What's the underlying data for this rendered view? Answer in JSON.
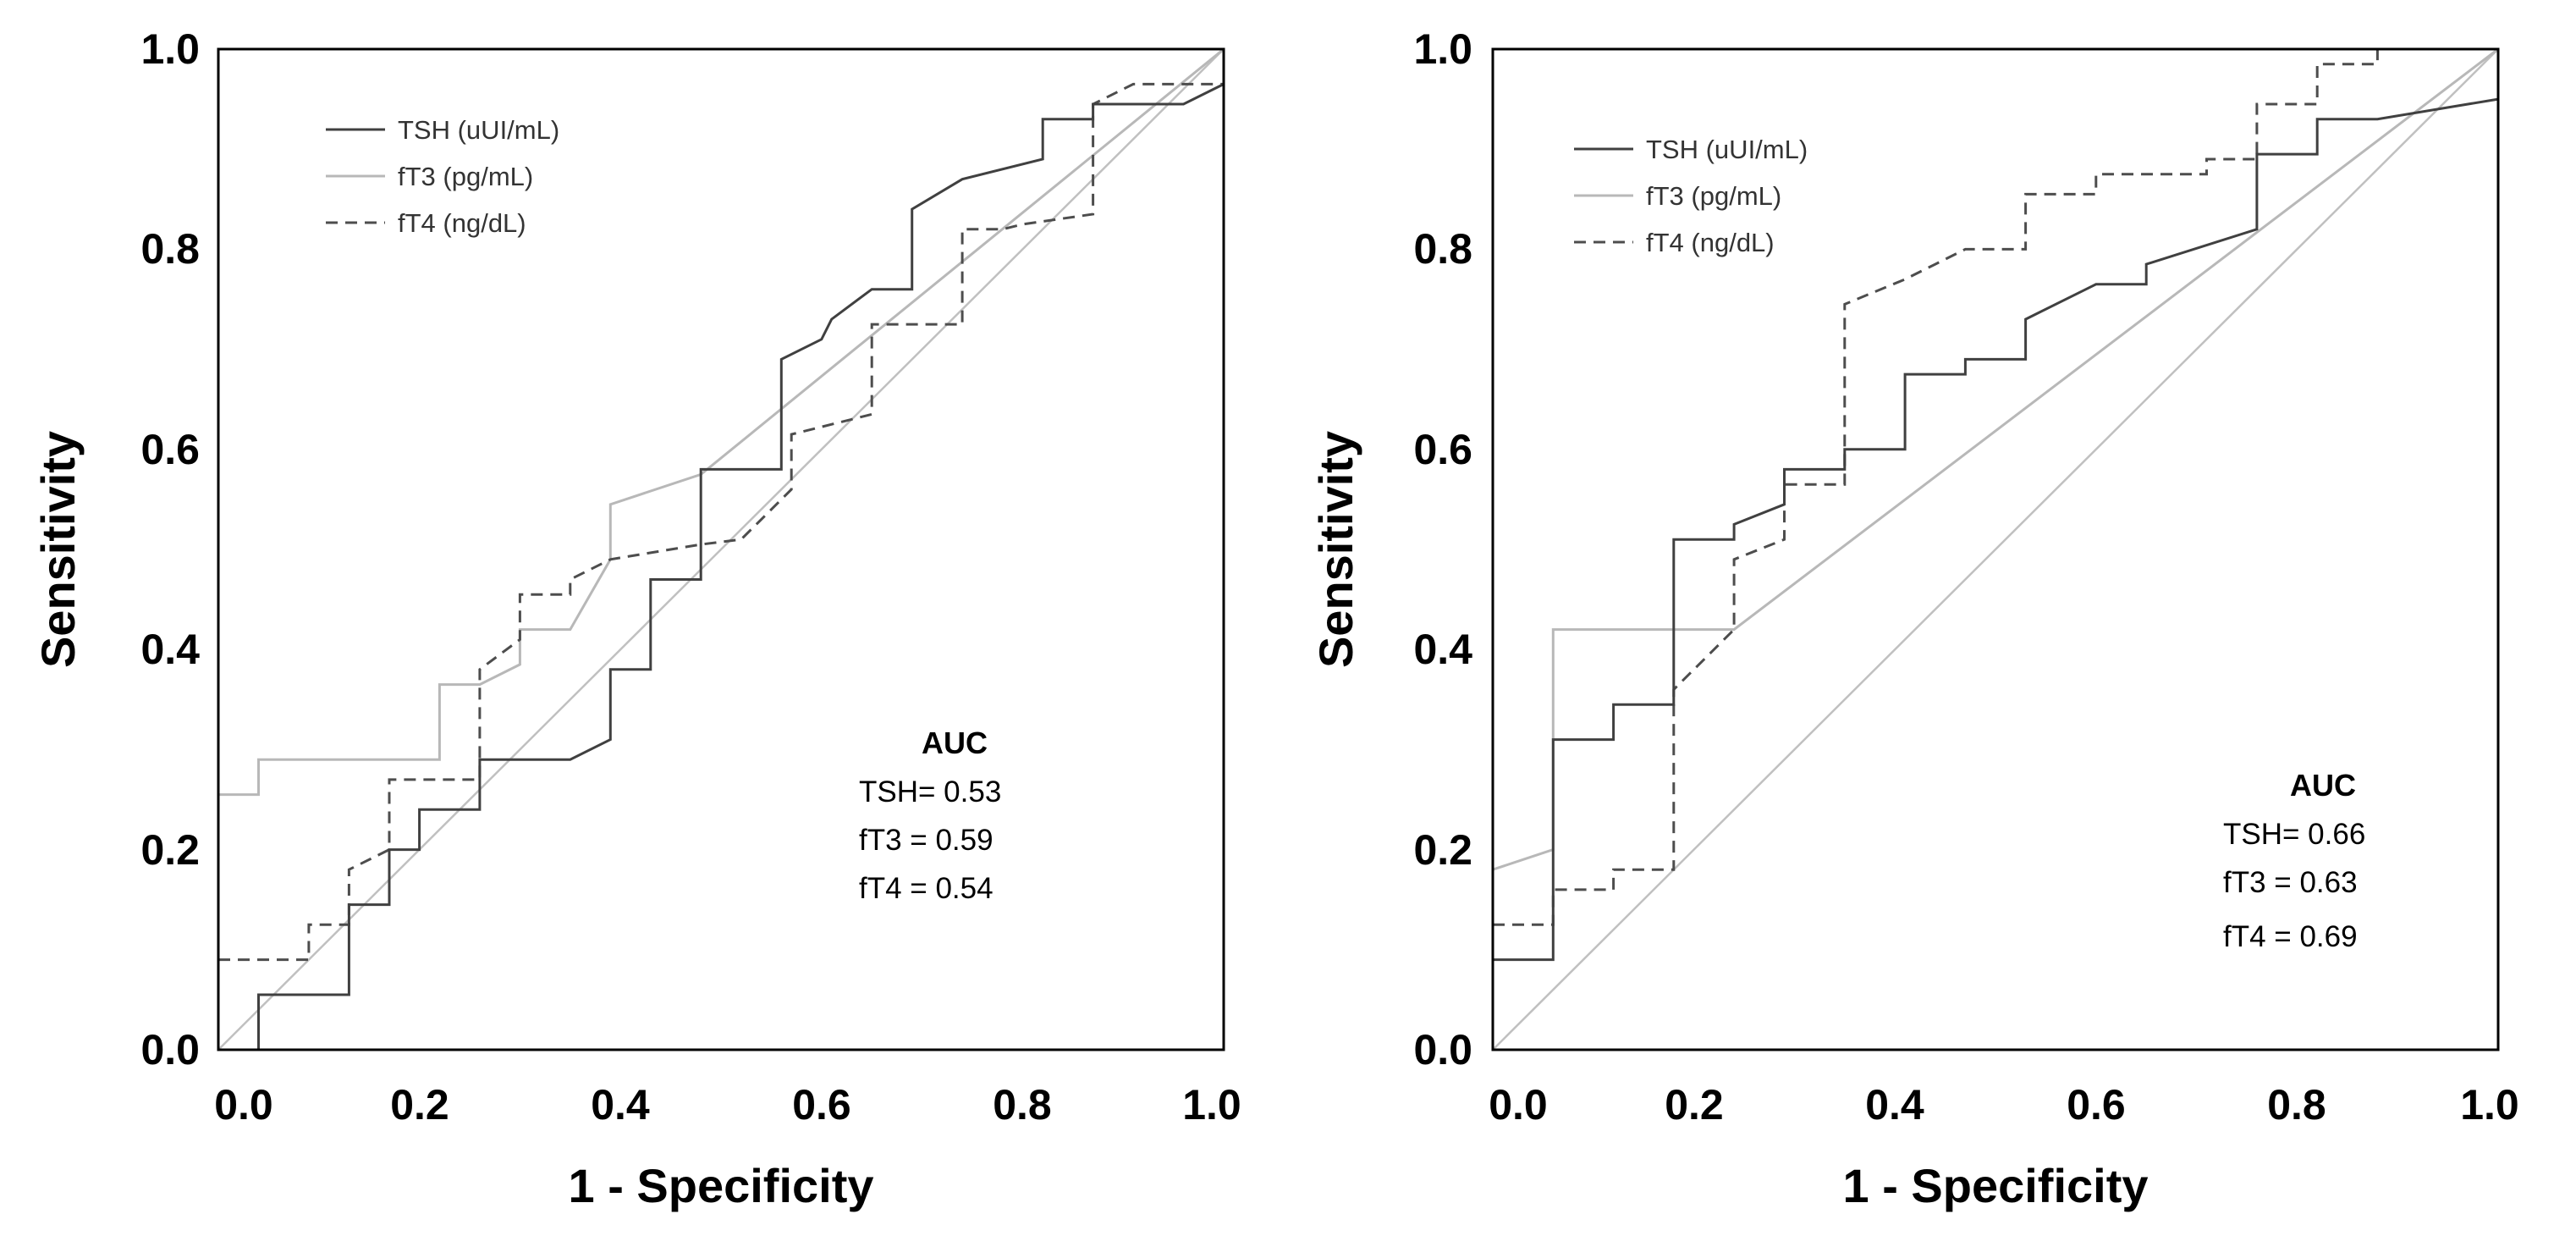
{
  "chart_data": [
    {
      "type": "line",
      "title": "",
      "xlabel": "1 - Specificity",
      "ylabel": "Sensitivity",
      "xlim": [
        0,
        1
      ],
      "ylim": [
        0,
        1
      ],
      "xticks": [
        "0.0",
        "0.2",
        "0.4",
        "0.6",
        "0.8",
        "1.0"
      ],
      "yticks": [
        "0.0",
        "0.2",
        "0.4",
        "0.6",
        "0.8",
        "1.0"
      ],
      "legend": [
        "TSH (uUI/mL)",
        "fT3 (pg/mL)",
        "fT4 (ng/dL)"
      ],
      "auc": {
        "heading": "AUC",
        "lines": [
          "TSH= 0.53",
          "fT3 = 0.59",
          "fT4 = 0.54"
        ]
      },
      "series": [
        {
          "name": "TSH (uUI/mL)",
          "style": "solid",
          "color": "#404040",
          "points": [
            [
              0.04,
              0
            ],
            [
              0.04,
              0.055
            ],
            [
              0.13,
              0.055
            ],
            [
              0.13,
              0.145
            ],
            [
              0.17,
              0.145
            ],
            [
              0.17,
              0.2
            ],
            [
              0.2,
              0.2
            ],
            [
              0.2,
              0.24
            ],
            [
              0.26,
              0.24
            ],
            [
              0.26,
              0.29
            ],
            [
              0.35,
              0.29
            ],
            [
              0.39,
              0.31
            ],
            [
              0.39,
              0.38
            ],
            [
              0.43,
              0.38
            ],
            [
              0.43,
              0.47
            ],
            [
              0.48,
              0.47
            ],
            [
              0.48,
              0.58
            ],
            [
              0.56,
              0.58
            ],
            [
              0.56,
              0.69
            ],
            [
              0.6,
              0.71
            ],
            [
              0.61,
              0.73
            ],
            [
              0.65,
              0.76
            ],
            [
              0.69,
              0.76
            ],
            [
              0.69,
              0.84
            ],
            [
              0.74,
              0.87
            ],
            [
              0.82,
              0.89
            ],
            [
              0.82,
              0.93
            ],
            [
              0.87,
              0.93
            ],
            [
              0.87,
              0.945
            ],
            [
              0.96,
              0.945
            ],
            [
              1,
              0.965
            ]
          ]
        },
        {
          "name": "fT3 (pg/mL)",
          "style": "solid",
          "color": "#b8b8b8",
          "points": [
            [
              0,
              0.255
            ],
            [
              0.04,
              0.255
            ],
            [
              0.04,
              0.29
            ],
            [
              0.22,
              0.29
            ],
            [
              0.22,
              0.365
            ],
            [
              0.26,
              0.365
            ],
            [
              0.3,
              0.385
            ],
            [
              0.3,
              0.42
            ],
            [
              0.35,
              0.42
            ],
            [
              0.39,
              0.49
            ],
            [
              0.39,
              0.545
            ],
            [
              0.48,
              0.575
            ],
            [
              1,
              1
            ]
          ]
        },
        {
          "name": "fT4 (ng/dL)",
          "style": "dashed",
          "color": "#4d4d4d",
          "points": [
            [
              0,
              0.09
            ],
            [
              0.09,
              0.09
            ],
            [
              0.09,
              0.125
            ],
            [
              0.13,
              0.125
            ],
            [
              0.13,
              0.18
            ],
            [
              0.17,
              0.2
            ],
            [
              0.17,
              0.27
            ],
            [
              0.26,
              0.27
            ],
            [
              0.26,
              0.38
            ],
            [
              0.3,
              0.41
            ],
            [
              0.3,
              0.455
            ],
            [
              0.35,
              0.455
            ],
            [
              0.35,
              0.47
            ],
            [
              0.39,
              0.49
            ],
            [
              0.48,
              0.505
            ],
            [
              0.52,
              0.51
            ],
            [
              0.57,
              0.56
            ],
            [
              0.57,
              0.615
            ],
            [
              0.65,
              0.635
            ],
            [
              0.65,
              0.725
            ],
            [
              0.74,
              0.725
            ],
            [
              0.74,
              0.82
            ],
            [
              0.78,
              0.82
            ],
            [
              0.8,
              0.825
            ],
            [
              0.87,
              0.835
            ],
            [
              0.87,
              0.945
            ],
            [
              0.91,
              0.965
            ],
            [
              1,
              0.965
            ]
          ]
        },
        {
          "name": "reference",
          "style": "solid",
          "color": "#c0c0c0",
          "points": [
            [
              0,
              0
            ],
            [
              1,
              1
            ]
          ]
        }
      ]
    },
    {
      "type": "line",
      "title": "",
      "xlabel": "1 - Specificity",
      "ylabel": "Sensitivity",
      "xlim": [
        0,
        1
      ],
      "ylim": [
        0,
        1
      ],
      "xticks": [
        "0.0",
        "0.2",
        "0.4",
        "0.6",
        "0.8",
        "1.0"
      ],
      "yticks": [
        "0.0",
        "0.2",
        "0.4",
        "0.6",
        "0.8",
        "1.0"
      ],
      "legend": [
        "TSH (uUI/mL)",
        "fT3 (pg/mL)",
        "fT4 (ng/dL)"
      ],
      "auc": {
        "heading": "AUC",
        "lines": [
          "TSH= 0.66",
          "fT3 = 0.63",
          "fT4 = 0.69"
        ]
      },
      "series": [
        {
          "name": "TSH (uUI/mL)",
          "style": "solid",
          "color": "#404040",
          "points": [
            [
              0,
              0.09
            ],
            [
              0.06,
              0.09
            ],
            [
              0.06,
              0.31
            ],
            [
              0.12,
              0.31
            ],
            [
              0.12,
              0.345
            ],
            [
              0.18,
              0.345
            ],
            [
              0.18,
              0.51
            ],
            [
              0.24,
              0.51
            ],
            [
              0.24,
              0.525
            ],
            [
              0.29,
              0.545
            ],
            [
              0.29,
              0.58
            ],
            [
              0.35,
              0.58
            ],
            [
              0.35,
              0.6
            ],
            [
              0.41,
              0.6
            ],
            [
              0.41,
              0.675
            ],
            [
              0.47,
              0.675
            ],
            [
              0.47,
              0.69
            ],
            [
              0.53,
              0.69
            ],
            [
              0.53,
              0.73
            ],
            [
              0.59,
              0.76
            ],
            [
              0.6,
              0.765
            ],
            [
              0.65,
              0.765
            ],
            [
              0.65,
              0.785
            ],
            [
              0.76,
              0.82
            ],
            [
              0.76,
              0.895
            ],
            [
              0.82,
              0.895
            ],
            [
              0.82,
              0.93
            ],
            [
              0.88,
              0.93
            ],
            [
              1,
              0.95
            ]
          ]
        },
        {
          "name": "fT3 (pg/mL)",
          "style": "solid",
          "color": "#b8b8b8",
          "points": [
            [
              0,
              0.18
            ],
            [
              0.06,
              0.2
            ],
            [
              0.06,
              0.42
            ],
            [
              0.24,
              0.42
            ],
            [
              1,
              1
            ]
          ]
        },
        {
          "name": "fT4 (ng/dL)",
          "style": "dashed",
          "color": "#4d4d4d",
          "points": [
            [
              0,
              0.125
            ],
            [
              0.06,
              0.125
            ],
            [
              0.06,
              0.16
            ],
            [
              0.12,
              0.16
            ],
            [
              0.12,
              0.18
            ],
            [
              0.18,
              0.18
            ],
            [
              0.18,
              0.36
            ],
            [
              0.24,
              0.42
            ],
            [
              0.24,
              0.49
            ],
            [
              0.29,
              0.51
            ],
            [
              0.29,
              0.565
            ],
            [
              0.35,
              0.565
            ],
            [
              0.35,
              0.745
            ],
            [
              0.41,
              0.77
            ],
            [
              0.47,
              0.8
            ],
            [
              0.53,
              0.8
            ],
            [
              0.53,
              0.855
            ],
            [
              0.6,
              0.855
            ],
            [
              0.6,
              0.875
            ],
            [
              0.71,
              0.875
            ],
            [
              0.71,
              0.89
            ],
            [
              0.76,
              0.89
            ],
            [
              0.76,
              0.945
            ],
            [
              0.82,
              0.945
            ],
            [
              0.82,
              0.985
            ],
            [
              0.88,
              0.985
            ],
            [
              0.88,
              1
            ]
          ]
        },
        {
          "name": "reference",
          "style": "solid",
          "color": "#c0c0c0",
          "points": [
            [
              0,
              0
            ],
            [
              1,
              1
            ]
          ]
        }
      ]
    }
  ]
}
